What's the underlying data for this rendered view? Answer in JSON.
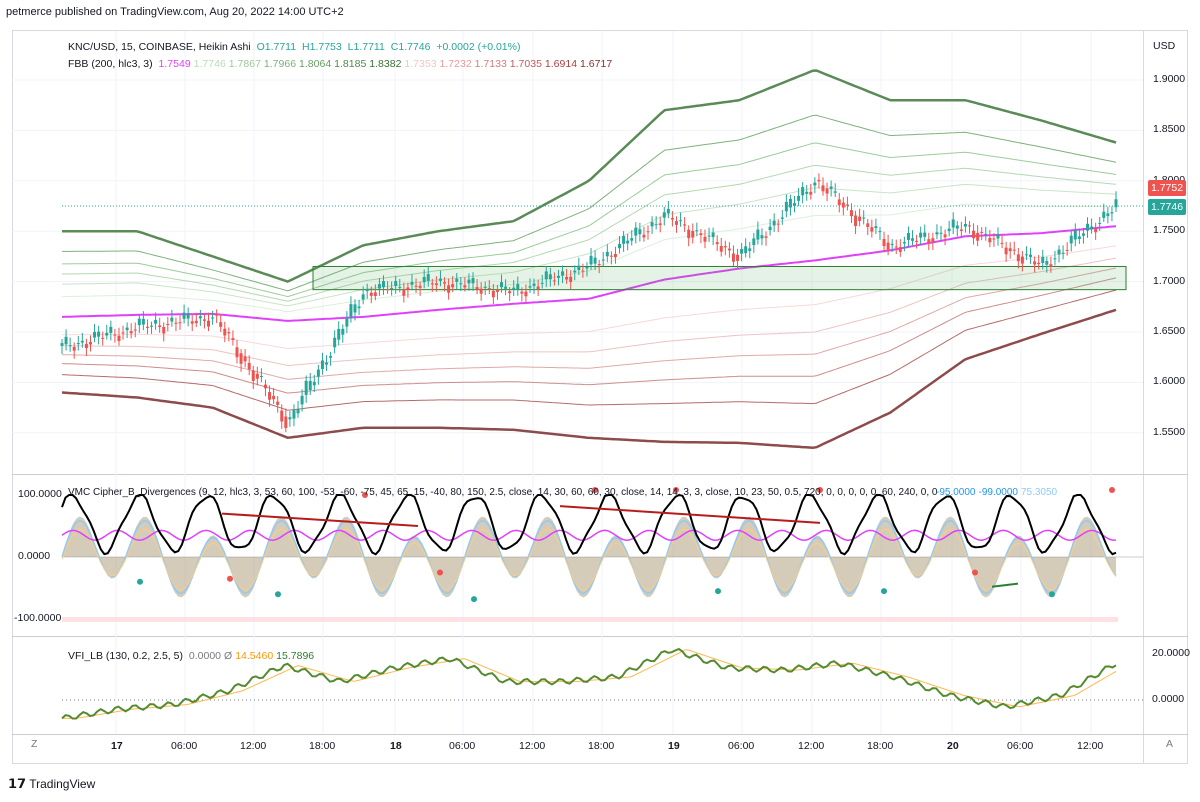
{
  "header": {
    "publisher_line": "petmerce published on TradingView.com, Aug 20, 2022 14:00 UTC+2"
  },
  "main_pane": {
    "symbol_line": [
      "KNC/USD, 15, COINBASE, Heikin Ashi",
      "O",
      "1.7711",
      "H",
      "1.7753",
      "L",
      "1.7711",
      "C",
      "1.7746",
      "+0.0002 (+0.01%)"
    ],
    "fbb_label": "FBB (200, hlc3, 3)",
    "fbb_values": [
      {
        "v": "1.7549",
        "c": "#e040fb"
      },
      {
        "v": "1.7746",
        "c": "#b9dbb8"
      },
      {
        "v": "1.7867",
        "c": "#9dcb9b"
      },
      {
        "v": "1.7966",
        "c": "#7fb07c"
      },
      {
        "v": "1.8064",
        "c": "#66a062"
      },
      {
        "v": "1.8185",
        "c": "#4e8a4a"
      },
      {
        "v": "1.8382",
        "c": "#3a7036"
      },
      {
        "v": "1.7353",
        "c": "#f4c6c6"
      },
      {
        "v": "1.7232",
        "c": "#e89a9a"
      },
      {
        "v": "1.7133",
        "c": "#d97a7a"
      },
      {
        "v": "1.7035",
        "c": "#c75b5b"
      },
      {
        "v": "1.6914",
        "c": "#a84040"
      },
      {
        "v": "1.6717",
        "c": "#8a2f2f"
      }
    ],
    "currency": "USD",
    "price_ticks": [
      "1.9000",
      "1.8500",
      "1.8000",
      "1.7500",
      "1.7000",
      "1.6500",
      "1.6000",
      "1.5500"
    ],
    "tags": [
      {
        "text": "1.7752",
        "color": "#ef5350"
      },
      {
        "text": "1.7746",
        "color": "#26a69a"
      }
    ]
  },
  "cipher_pane": {
    "label": "VMC Cipher_B_Divergences (9, 12, hlc3, 3, 53, 60, 100, -53, -60, -75, 45, 65, 15, -40, 80, 150, 2.5, close, 14, 30, 60, 60, 30, close, 14, 14, 3, 3, close, 10, 23, 50, 0.5, 720, 0, 0, 0, 0, 0, 60, 240, 0, 0, 240)",
    "values": [
      {
        "v": "-95.0000",
        "c": "#2196f3"
      },
      {
        "v": "-99.0000",
        "c": "#2196f3"
      },
      {
        "v": "75.3050",
        "c": "#90caf9"
      }
    ],
    "ticks": [
      "100.0000",
      "0.0000",
      "-100.0000"
    ]
  },
  "vfi_pane": {
    "label": "VFI_LB (130, 0.2, 2.5, 5)",
    "values": [
      {
        "v": "0.0000",
        "c": "#787b86"
      },
      {
        "v": "Ø",
        "c": "#787b86"
      },
      {
        "v": "14.5460",
        "c": "#ff9800"
      },
      {
        "v": "15.7896",
        "c": "#2e7d32"
      }
    ],
    "ticks": [
      "20.0000",
      "0.0000"
    ]
  },
  "time_axis": [
    "17",
    "06:00",
    "12:00",
    "18:00",
    "18",
    "06:00",
    "12:00",
    "18:00",
    "19",
    "06:00",
    "12:00",
    "18:00",
    "20",
    "06:00",
    "12:00"
  ],
  "axis_buttons": {
    "left": "Z",
    "right": "A"
  },
  "brand": "TradingView",
  "chart_data": {
    "type": "line",
    "title": "KNC/USD, 15, COINBASE, Heikin Ashi",
    "x": [
      "17",
      "06:00",
      "12:00",
      "18:00",
      "18",
      "06:00",
      "12:00",
      "18:00",
      "19",
      "06:00",
      "12:00",
      "18:00",
      "20",
      "06:00",
      "12:00"
    ],
    "ylim": [
      1.53,
      1.93
    ],
    "series": [
      {
        "name": "KNC/USD",
        "values": [
          1.635,
          1.655,
          1.665,
          1.56,
          1.69,
          1.7,
          1.69,
          1.715,
          1.765,
          1.725,
          1.8,
          1.735,
          1.755,
          1.715,
          1.775
        ]
      },
      {
        "name": "FBB basis",
        "values": [
          1.665,
          1.667,
          1.668,
          1.661,
          1.665,
          1.672,
          1.678,
          1.683,
          1.702,
          1.713,
          1.721,
          1.731,
          1.745,
          1.748,
          1.755
        ]
      },
      {
        "name": "FBB upper",
        "values": [
          1.75,
          1.75,
          1.725,
          1.7,
          1.736,
          1.75,
          1.76,
          1.8,
          1.87,
          1.88,
          1.91,
          1.88,
          1.88,
          1.86,
          1.838
        ]
      },
      {
        "name": "FBB lower",
        "values": [
          1.59,
          1.585,
          1.575,
          1.545,
          1.555,
          1.555,
          1.553,
          1.545,
          1.541,
          1.54,
          1.535,
          1.57,
          1.623,
          1.648,
          1.672
        ]
      }
    ]
  }
}
